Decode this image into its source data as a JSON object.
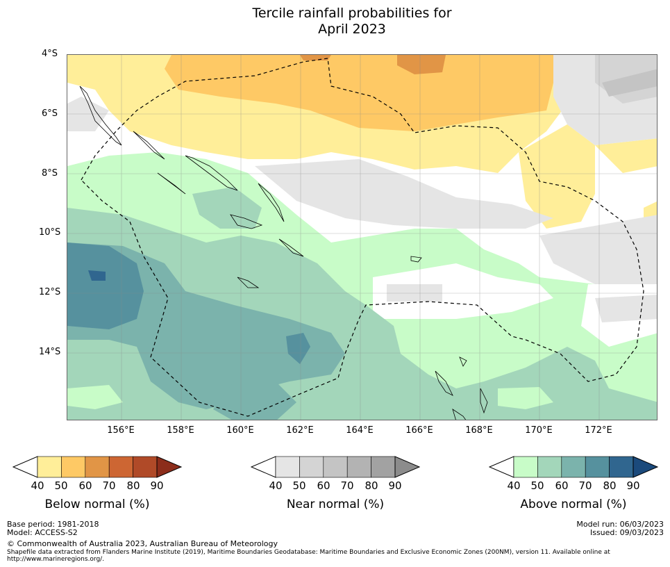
{
  "title_line1": "Tercile rainfall probabilities for",
  "title_line2": "April 2023",
  "latitude_labels": [
    "4°S",
    "6°S",
    "8°S",
    "10°S",
    "12°S",
    "14°S"
  ],
  "longitude_labels": [
    "156°E",
    "158°E",
    "160°E",
    "162°E",
    "164°E",
    "166°E",
    "168°E",
    "170°E",
    "172°E"
  ],
  "legends": [
    {
      "name": "below",
      "label": "Below normal (%)",
      "ticks": [
        "40",
        "50",
        "60",
        "70",
        "80",
        "90"
      ],
      "colors": [
        "#ffee99",
        "#fec965",
        "#e19546",
        "#cd6633",
        "#b04a28",
        "#8c2d1b"
      ]
    },
    {
      "name": "near",
      "label": "Near normal (%)",
      "ticks": [
        "40",
        "50",
        "60",
        "70",
        "80",
        "90"
      ],
      "colors": [
        "#e5e5e5",
        "#d4d4d4",
        "#c4c4c4",
        "#b3b3b3",
        "#a2a2a2",
        "#8c8c8c"
      ]
    },
    {
      "name": "above",
      "label": "Above normal (%)",
      "ticks": [
        "40",
        "50",
        "60",
        "70",
        "80",
        "90"
      ],
      "colors": [
        "#c8fcc8",
        "#a3d6ba",
        "#7bb3ac",
        "#56919e",
        "#30668f",
        "#1b4a7c"
      ]
    }
  ],
  "footer": {
    "base_period": "Base period: 1981-2018",
    "model": "Model: ACCESS-S2",
    "model_run": "Model run: 06/03/2023",
    "issued": "Issued: 09/03/2023",
    "copyright": "© Commonwealth of Australia 2023, Australian Bureau of Meteorology",
    "shapefile_line1": "Shapefile data extracted from Flanders Marine Institute (2019), Maritime Boundaries Geodatabase: Maritime Boundaries and Exclusive Economic Zones (200NM), version 11. Available online at",
    "shapefile_line2": "http://www.marineregions.org/."
  }
}
